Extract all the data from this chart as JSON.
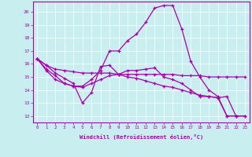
{
  "bg_color": "#c8eef0",
  "line_color": "#aa00aa",
  "xlabel": "Windchill (Refroidissement éolien,°C)",
  "xlim": [
    -0.5,
    23.5
  ],
  "ylim": [
    11.5,
    20.8
  ],
  "yticks": [
    12,
    13,
    14,
    15,
    16,
    17,
    18,
    19,
    20
  ],
  "xticks": [
    0,
    1,
    2,
    3,
    4,
    5,
    6,
    7,
    8,
    9,
    10,
    11,
    12,
    13,
    14,
    15,
    16,
    17,
    18,
    19,
    20,
    21,
    22,
    23
  ],
  "s1_x": [
    0,
    1,
    2,
    3,
    4,
    5,
    6,
    7,
    8,
    9,
    10,
    11,
    12,
    13,
    14,
    15,
    16,
    17,
    18,
    19,
    20,
    21,
    22,
    23
  ],
  "s1_y": [
    16.4,
    15.9,
    15.6,
    15.5,
    15.4,
    15.3,
    15.3,
    15.3,
    15.3,
    15.2,
    15.2,
    15.2,
    15.2,
    15.2,
    15.2,
    15.2,
    15.1,
    15.1,
    15.1,
    15.0,
    15.0,
    15.0,
    15.0,
    15.0
  ],
  "s2_x": [
    0,
    1,
    2,
    3,
    4,
    5,
    6,
    7,
    8,
    9,
    10,
    11,
    12,
    13,
    14,
    15,
    16,
    17,
    18,
    19,
    20,
    21,
    22
  ],
  "s2_y": [
    16.4,
    15.9,
    15.3,
    14.9,
    14.5,
    13.0,
    13.8,
    15.8,
    15.9,
    15.2,
    15.5,
    15.5,
    15.6,
    15.7,
    15.0,
    14.8,
    14.5,
    14.0,
    13.5,
    13.5,
    13.4,
    12.0,
    12.0
  ],
  "s3_x": [
    0,
    1,
    2,
    3,
    4,
    5,
    6,
    7,
    8,
    9,
    10,
    11,
    12,
    13,
    14,
    15,
    16,
    17,
    18,
    19,
    20,
    21,
    22,
    23
  ],
  "s3_y": [
    16.4,
    15.6,
    15.1,
    14.5,
    14.3,
    14.3,
    14.8,
    15.5,
    17.0,
    17.0,
    17.8,
    18.3,
    19.2,
    20.3,
    20.5,
    20.5,
    18.7,
    16.2,
    15.0,
    14.0,
    13.5,
    12.0,
    12.0,
    12.0
  ],
  "s4_x": [
    0,
    1,
    2,
    3,
    4,
    5,
    6,
    7,
    8,
    9,
    10,
    11,
    12,
    13,
    14,
    15,
    16,
    17,
    18,
    19,
    20,
    21,
    22,
    23
  ],
  "s4_y": [
    16.4,
    15.5,
    14.8,
    14.5,
    14.3,
    14.2,
    14.5,
    14.8,
    15.1,
    15.2,
    15.0,
    14.9,
    14.7,
    14.5,
    14.3,
    14.2,
    14.0,
    13.8,
    13.6,
    13.5,
    13.4,
    13.5,
    12.0,
    12.0
  ]
}
